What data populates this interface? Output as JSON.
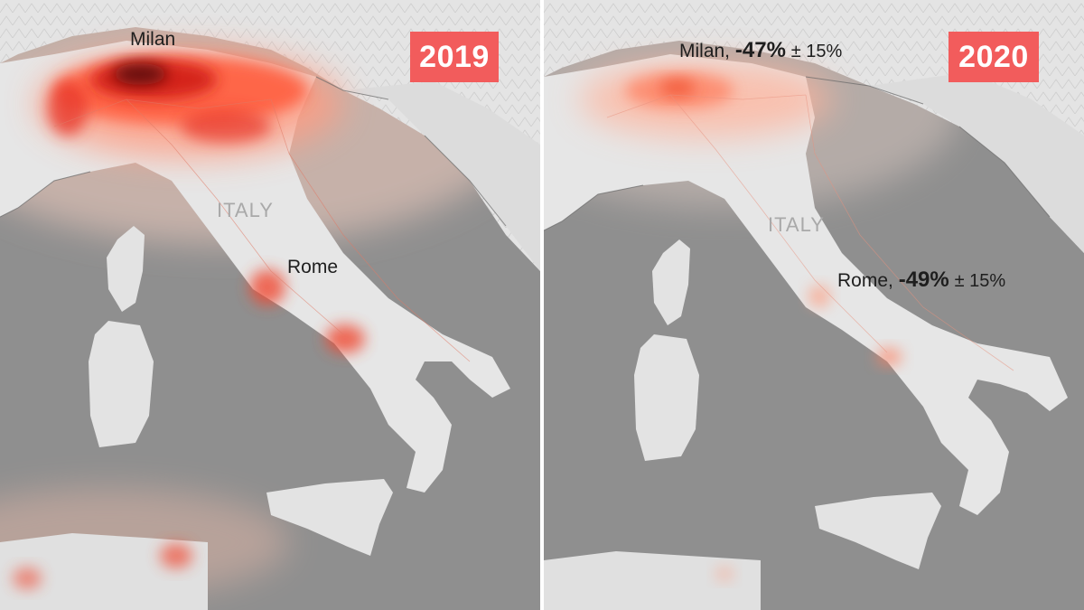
{
  "colors": {
    "sea": "#8f8f8f",
    "land": "#e3e3e3",
    "emission_light": "#ffc8b4",
    "emission_mid": "#ff6a4a",
    "emission_high": "#d4201a",
    "emission_peak": "#5a0808",
    "badge": "#f25c5c"
  },
  "panels": [
    {
      "year": "2019",
      "country": "ITALY",
      "cities": [
        {
          "name": "Milan",
          "change": "",
          "uncertainty": ""
        },
        {
          "name": "Rome",
          "change": "",
          "uncertainty": ""
        }
      ]
    },
    {
      "year": "2020",
      "country": "ITALY",
      "cities": [
        {
          "name": "Milan,",
          "change": "-47%",
          "uncertainty": "± 15%"
        },
        {
          "name": "Rome,",
          "change": "-49%",
          "uncertainty": "± 15%"
        }
      ]
    }
  ]
}
